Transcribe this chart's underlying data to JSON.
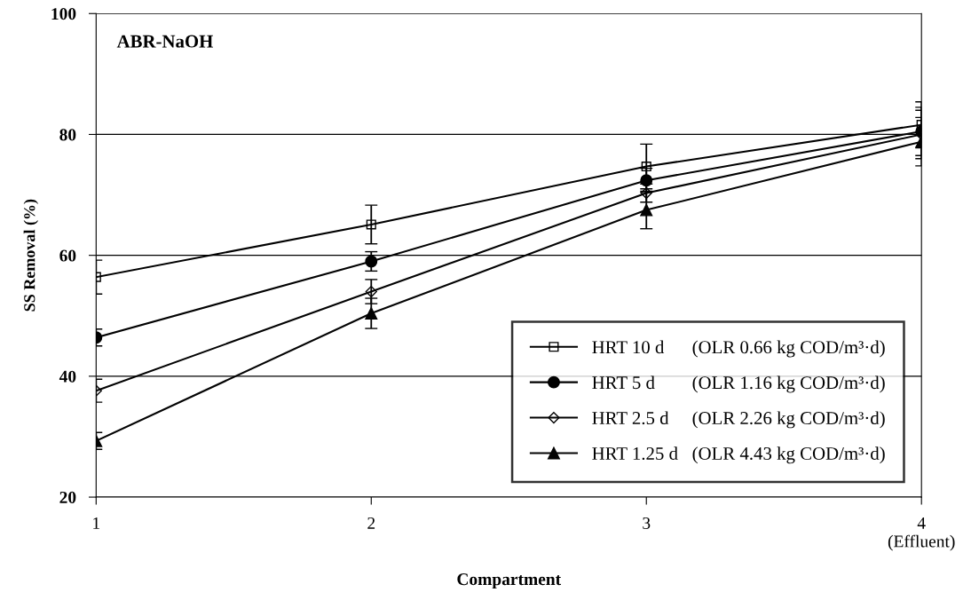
{
  "chart_data": {
    "type": "line",
    "xlabel": "Compartment",
    "ylabel": "SS Removal (%)",
    "annotations": [
      "ABR-NaOH"
    ],
    "categories": [
      "1",
      "2",
      "3",
      "4\n(Effluent)"
    ],
    "series": [
      {
        "name": "HRT 10 d      (OLR 0.66 kg COD/m³·d)",
        "color": "#000000",
        "marker": "square",
        "values": [
          56.4,
          65.1,
          74.7,
          81.6
        ],
        "errors": [
          2.8,
          3.2,
          3.7,
          3.8
        ]
      },
      {
        "name": "HRT 5 d        (OLR 1.16 kg COD/m³·d)",
        "color": "#010101",
        "marker": "circle",
        "values": [
          46.4,
          59.0,
          72.4,
          80.5
        ],
        "errors": [
          1.4,
          1.6,
          2,
          4
        ]
      },
      {
        "name": "HRT 2.5 d     (OLR 2.26 kg COD/m³·d)",
        "color": "#020202",
        "marker": "diamond",
        "values": [
          37.6,
          54.0,
          70.3,
          80.0
        ],
        "errors": [
          1.9,
          2,
          1.5,
          4
        ]
      },
      {
        "name": "HRT 1.25 d   (OLR 4.43 kg COD/m³·d)",
        "color": "#030303",
        "marker": "triangle",
        "values": [
          29.3,
          50.4,
          67.5,
          78.8
        ],
        "errors": [
          1.4,
          2.5,
          3.1,
          4
        ]
      }
    ],
    "ylim": [
      20,
      100
    ],
    "yticks": [
      20,
      40,
      60,
      80,
      100
    ],
    "grid": "y",
    "legend": "bottom right",
    "line_style": "solid"
  }
}
